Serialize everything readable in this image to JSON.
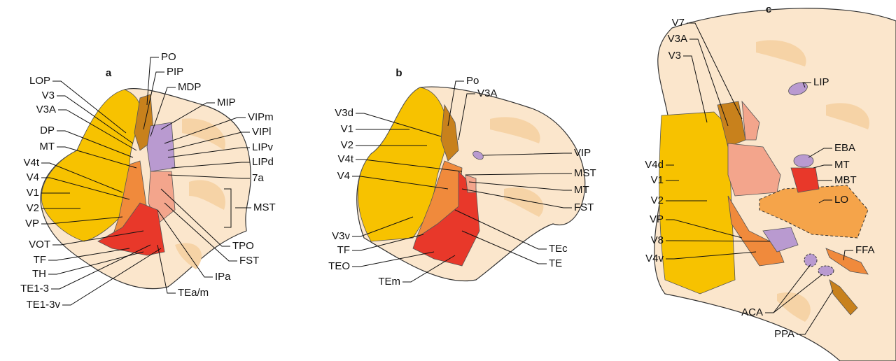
{
  "panels": [
    {
      "label": "a",
      "left": [
        "LOP",
        "V3",
        "V3A",
        "DP",
        "MT",
        "V4t",
        "V4",
        "V1",
        "V2",
        "VP",
        "VOT",
        "TF",
        "TH",
        "TE1-3",
        "TE1-3v"
      ],
      "right": [
        "PO",
        "PIP",
        "MDP",
        "MIP",
        "VIPm",
        "VIPl",
        "LIPv",
        "LIPd",
        "7a",
        "MST",
        "TPO",
        "FST",
        "IPa",
        "TEa/m"
      ]
    },
    {
      "label": "b",
      "left": [
        "V3d",
        "V1",
        "V2",
        "V4t",
        "V4",
        "V3v",
        "TF",
        "TEO",
        "TEm"
      ],
      "right": [
        "Po",
        "V3A",
        "VIP",
        "MST",
        "MT",
        "FST",
        "TEc",
        "TE"
      ]
    },
    {
      "label": "c",
      "left": [
        "V7",
        "V3A",
        "V3",
        "V4d",
        "V1",
        "V2",
        "VP",
        "V8",
        "V4v",
        "ACA",
        "PPA"
      ],
      "right": [
        "LIP",
        "EBA",
        "MT",
        "MBT",
        "LO",
        "FFA"
      ]
    }
  ]
}
